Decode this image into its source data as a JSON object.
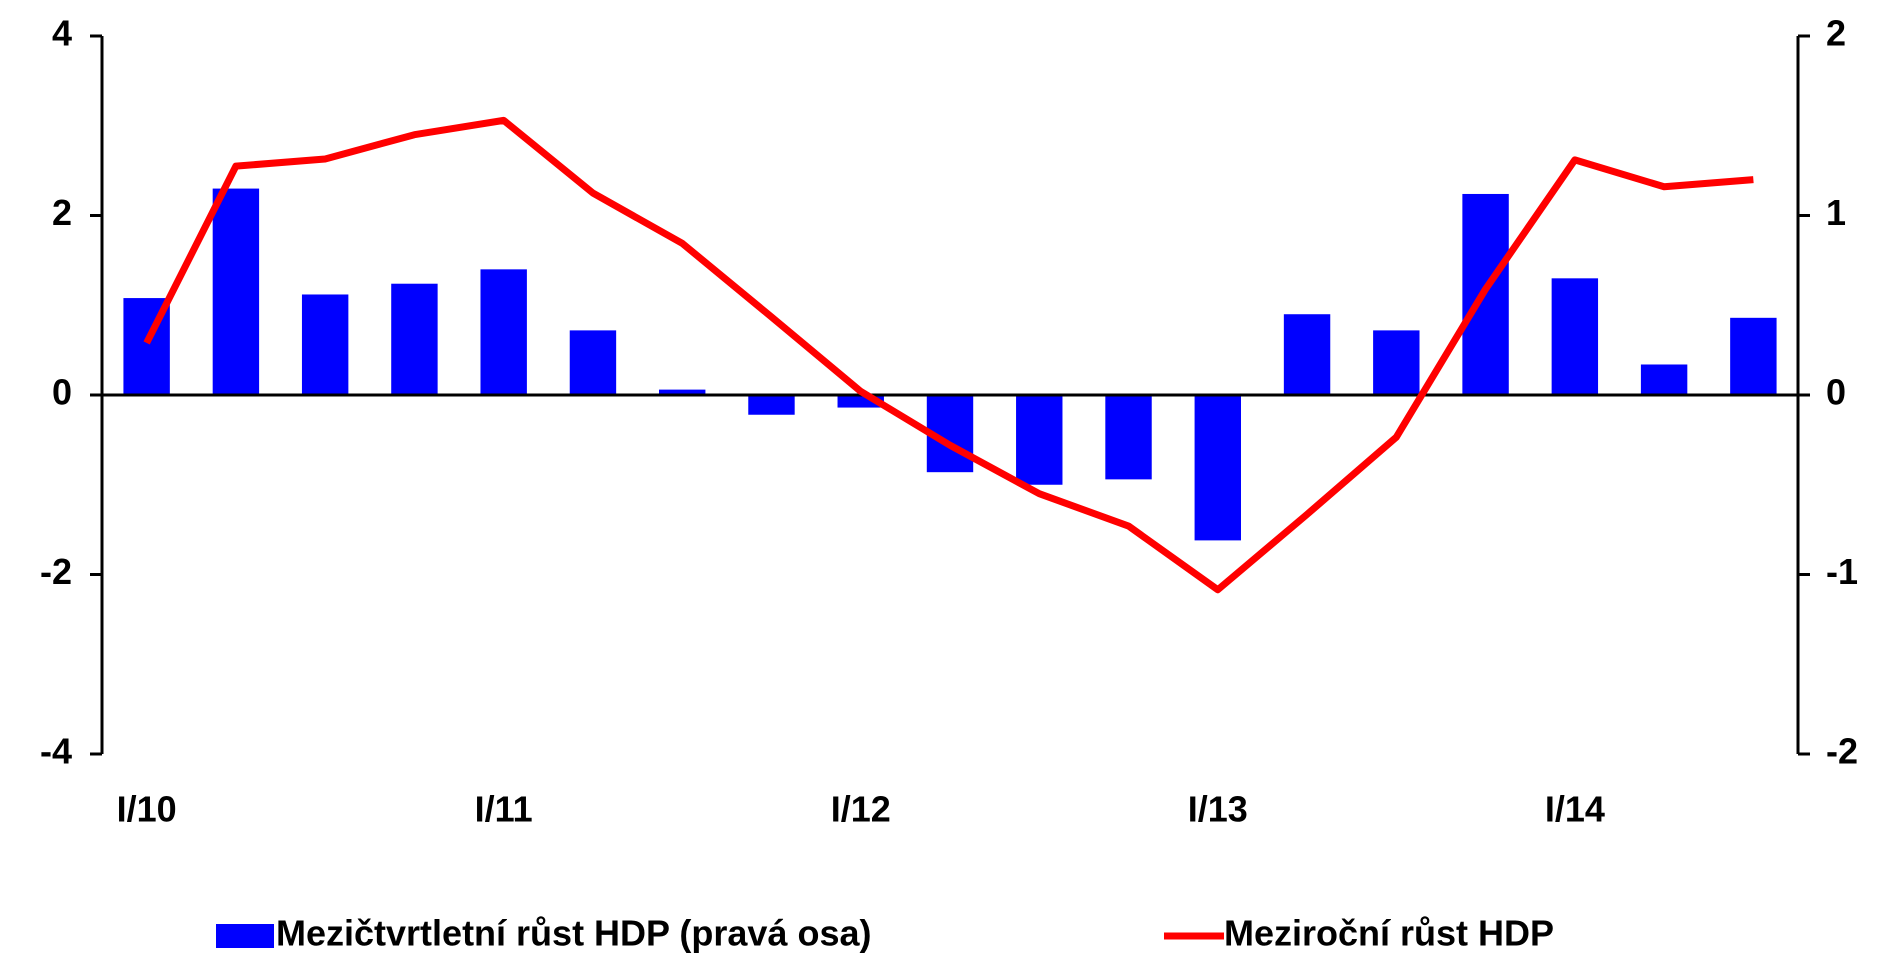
{
  "chart_data": {
    "type": "bar_line",
    "categories": [
      "I/10",
      null,
      null,
      null,
      "I/11",
      null,
      null,
      null,
      "I/12",
      null,
      null,
      null,
      "I/13",
      null,
      null,
      null,
      "I/14",
      null,
      null
    ],
    "series": [
      {
        "name": "Mezičtvrtletní růst HDP (pravá osa)",
        "color": "#0000ff",
        "type": "bar",
        "axis": "y2",
        "values": [
          0.54,
          1.15,
          0.56,
          0.62,
          0.7,
          0.36,
          0.03,
          -0.11,
          -0.07,
          -0.43,
          -0.5,
          -0.47,
          -0.81,
          0.45,
          0.36,
          1.12,
          0.65,
          0.17,
          0.43
        ]
      },
      {
        "name": "Meziroční růst HDP",
        "color": "#ff0000",
        "type": "line",
        "values": [
          0.58,
          2.55,
          2.63,
          2.9,
          3.06,
          2.25,
          1.69,
          0.87,
          0.04,
          -0.56,
          -1.1,
          -1.46,
          -2.17,
          -1.33,
          -0.47,
          1.18,
          2.62,
          2.32,
          2.4
        ]
      }
    ],
    "ylim": [
      -4,
      4
    ],
    "yticks": [
      -4,
      -2,
      0,
      2,
      4
    ],
    "y2lim": [
      -2,
      2
    ],
    "y2ticks": [
      -2,
      -1,
      0,
      1,
      2
    ],
    "legend": "bottom"
  }
}
